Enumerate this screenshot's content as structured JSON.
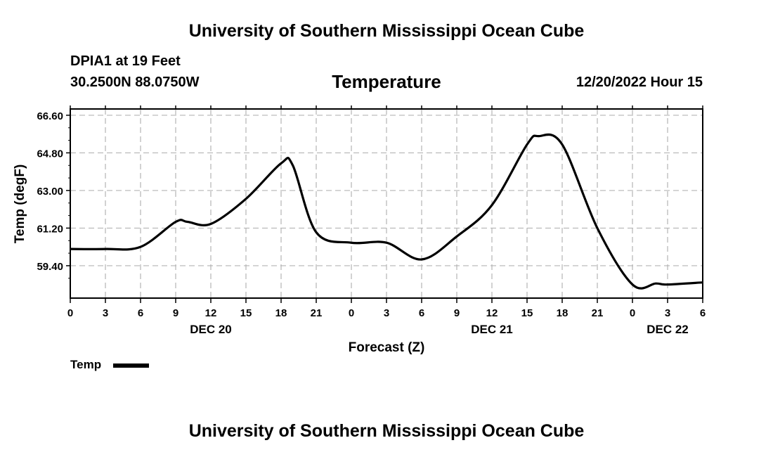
{
  "header": {
    "title": "University of Southern Mississippi Ocean Cube",
    "station": "DPIA1 at 19 Feet",
    "coords": "30.2500N  88.0750W",
    "timestamp": "12/20/2022 Hour 15"
  },
  "footer": {
    "title": "University of Southern Mississippi Ocean Cube"
  },
  "legend": {
    "label": "Temp",
    "color": "#000000"
  },
  "chart_data": {
    "type": "line",
    "title": "Temperature",
    "xlabel": "Forecast (Z)",
    "ylabel": "Temp (degF)",
    "xlim": [
      0,
      54
    ],
    "ylim": [
      57.85,
      66.9
    ],
    "grid": true,
    "legend_position": "bottom-left",
    "yticks": [
      59.4,
      61.2,
      63.0,
      64.8,
      66.6
    ],
    "ytick_labels": [
      "59.40",
      "61.20",
      "63.00",
      "64.80",
      "66.60"
    ],
    "xticks": [
      0,
      3,
      6,
      9,
      12,
      15,
      18,
      21,
      24,
      27,
      30,
      33,
      36,
      39,
      42,
      45,
      48,
      51,
      54
    ],
    "xtick_labels": [
      "0",
      "3",
      "6",
      "9",
      "12",
      "15",
      "18",
      "21",
      "0",
      "3",
      "6",
      "9",
      "12",
      "15",
      "18",
      "21",
      "0",
      "3",
      "6"
    ],
    "day_labels": [
      {
        "x": 12,
        "label": "DEC 20"
      },
      {
        "x": 36,
        "label": "DEC 21"
      },
      {
        "x": 51,
        "label": "DEC 22"
      }
    ],
    "series": [
      {
        "name": "Temp",
        "color": "#000000",
        "x": [
          0,
          3,
          6,
          9,
          10,
          12,
          15,
          18,
          19,
          21,
          24,
          27,
          30,
          33,
          36,
          39,
          40,
          42,
          45,
          48,
          50,
          51,
          54
        ],
        "values": [
          60.2,
          60.2,
          60.3,
          61.5,
          61.5,
          61.4,
          62.6,
          64.3,
          64.2,
          61.0,
          60.5,
          60.5,
          59.7,
          60.8,
          62.3,
          65.2,
          65.6,
          65.2,
          61.2,
          58.5,
          58.55,
          58.5,
          58.6
        ]
      }
    ]
  }
}
